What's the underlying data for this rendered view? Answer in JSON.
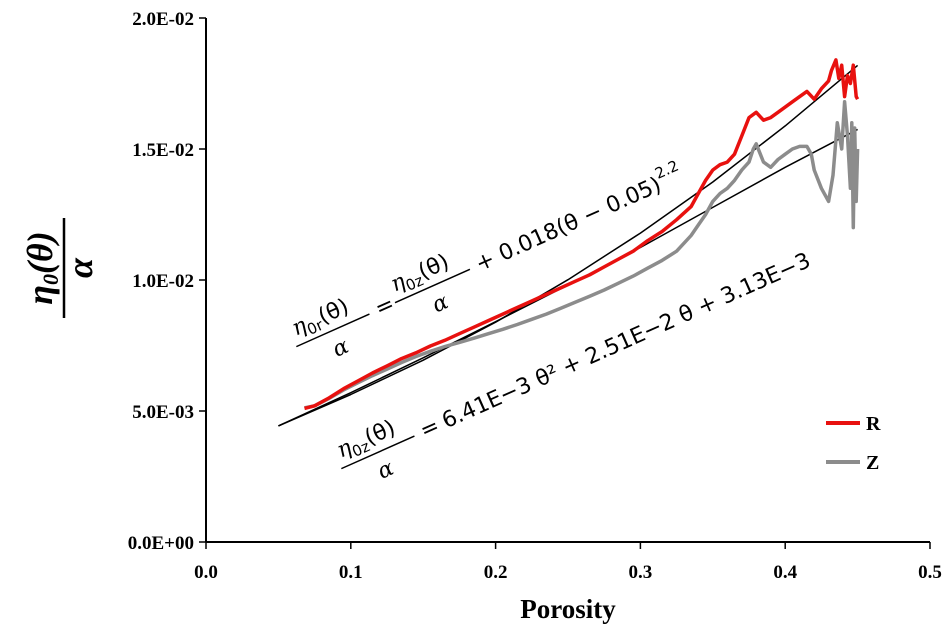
{
  "chart_data": {
    "type": "line",
    "xlabel": "Porosity",
    "ylabel": {
      "main": "η",
      "sub": "0",
      "arg": "(θ)",
      "denominator": "α"
    },
    "xlim": [
      0,
      0.5
    ],
    "ylim": [
      0,
      0.02
    ],
    "x_ticks": [
      "0.0",
      "0.1",
      "0.2",
      "0.3",
      "0.4",
      "0.5"
    ],
    "y_ticks": [
      "0.0E+00",
      "5.0E-03",
      "1.0E-02",
      "1.5E-02",
      "2.0E-02"
    ],
    "grid": false,
    "legend_position": "bottom-right",
    "series": [
      {
        "name": "R",
        "color": "#e8110f",
        "x": [
          0.068,
          0.075,
          0.085,
          0.095,
          0.105,
          0.115,
          0.125,
          0.135,
          0.145,
          0.155,
          0.165,
          0.175,
          0.185,
          0.195,
          0.205,
          0.215,
          0.225,
          0.235,
          0.245,
          0.255,
          0.265,
          0.275,
          0.285,
          0.295,
          0.305,
          0.315,
          0.325,
          0.335,
          0.34,
          0.345,
          0.35,
          0.355,
          0.36,
          0.365,
          0.37,
          0.375,
          0.38,
          0.385,
          0.39,
          0.395,
          0.4,
          0.405,
          0.41,
          0.415,
          0.42,
          0.425,
          0.43,
          0.432,
          0.435,
          0.437,
          0.439,
          0.441,
          0.443,
          0.445,
          0.447,
          0.449,
          0.45
        ],
        "y": [
          0.0051,
          0.0052,
          0.0055,
          0.00585,
          0.00615,
          0.00645,
          0.00672,
          0.007,
          0.00722,
          0.00748,
          0.0077,
          0.00795,
          0.0082,
          0.00845,
          0.0087,
          0.00895,
          0.0092,
          0.00945,
          0.0097,
          0.00995,
          0.0102,
          0.0105,
          0.0108,
          0.0111,
          0.0115,
          0.01185,
          0.0123,
          0.0128,
          0.0133,
          0.0138,
          0.0142,
          0.0144,
          0.0145,
          0.0148,
          0.0155,
          0.0162,
          0.0164,
          0.0161,
          0.0162,
          0.0164,
          0.0166,
          0.0168,
          0.017,
          0.0172,
          0.0169,
          0.0173,
          0.0176,
          0.018,
          0.0184,
          0.0177,
          0.0182,
          0.017,
          0.0178,
          0.0175,
          0.0182,
          0.017,
          0.0169
        ]
      },
      {
        "name": "Z",
        "color": "#8c8c8c",
        "x": [
          0.068,
          0.075,
          0.085,
          0.095,
          0.105,
          0.115,
          0.125,
          0.135,
          0.145,
          0.155,
          0.165,
          0.175,
          0.185,
          0.195,
          0.205,
          0.215,
          0.225,
          0.235,
          0.245,
          0.255,
          0.265,
          0.275,
          0.285,
          0.295,
          0.305,
          0.315,
          0.325,
          0.335,
          0.34,
          0.345,
          0.35,
          0.355,
          0.36,
          0.365,
          0.37,
          0.375,
          0.378,
          0.38,
          0.385,
          0.39,
          0.395,
          0.4,
          0.405,
          0.41,
          0.415,
          0.418,
          0.42,
          0.425,
          0.43,
          0.433,
          0.436,
          0.439,
          0.441,
          0.443,
          0.445,
          0.446,
          0.447,
          0.448,
          0.449,
          0.45
        ],
        "y": [
          0.00512,
          0.0052,
          0.00548,
          0.0058,
          0.00608,
          0.00635,
          0.0066,
          0.00685,
          0.00708,
          0.00728,
          0.00746,
          0.00762,
          0.00778,
          0.00795,
          0.00812,
          0.0083,
          0.0085,
          0.0087,
          0.00892,
          0.00915,
          0.00938,
          0.00962,
          0.00988,
          0.01015,
          0.01045,
          0.01075,
          0.0111,
          0.0117,
          0.0121,
          0.0125,
          0.013,
          0.0133,
          0.0135,
          0.0138,
          0.0142,
          0.0145,
          0.015,
          0.0152,
          0.0145,
          0.0143,
          0.0146,
          0.0148,
          0.015,
          0.0151,
          0.0151,
          0.0148,
          0.0142,
          0.0135,
          0.013,
          0.014,
          0.016,
          0.015,
          0.0168,
          0.0155,
          0.0135,
          0.016,
          0.012,
          0.0158,
          0.013,
          0.015
        ]
      },
      {
        "name": "",
        "color": "#000000",
        "x": [
          0.05,
          0.1,
          0.15,
          0.2,
          0.25,
          0.3,
          0.35,
          0.4,
          0.45
        ],
        "y": [
          0.00443,
          0.00563,
          0.00694,
          0.00839,
          0.01001,
          0.01179,
          0.01374,
          0.01588,
          0.01819
        ]
      },
      {
        "name": "",
        "color": "#000000",
        "x": [
          0.05,
          0.1,
          0.15,
          0.2,
          0.25,
          0.3,
          0.35,
          0.4,
          0.45
        ],
        "y": [
          0.00443,
          0.0057,
          0.00703,
          0.00841,
          0.00981,
          0.01124,
          0.01277,
          0.0143,
          0.01575
        ]
      }
    ],
    "annotations": [
      {
        "lhs_num": "η",
        "lhs_sub": "0r",
        "lhs_arg": "(θ)",
        "lhs_den": "α",
        "eq": "=",
        "rhs_num": "η",
        "rhs_sub": "0z",
        "rhs_arg": "(θ)",
        "rhs_den": "α",
        "rest": "+ 0.018(θ − 0.05)",
        "power": "2.2"
      },
      {
        "lhs_num": "η",
        "lhs_sub": "0z",
        "lhs_arg": "(θ)",
        "lhs_den": "α",
        "eq": "=",
        "rest": "6.41E−3 θ² + 2.51E−2 θ + 3.13E−3"
      }
    ]
  }
}
